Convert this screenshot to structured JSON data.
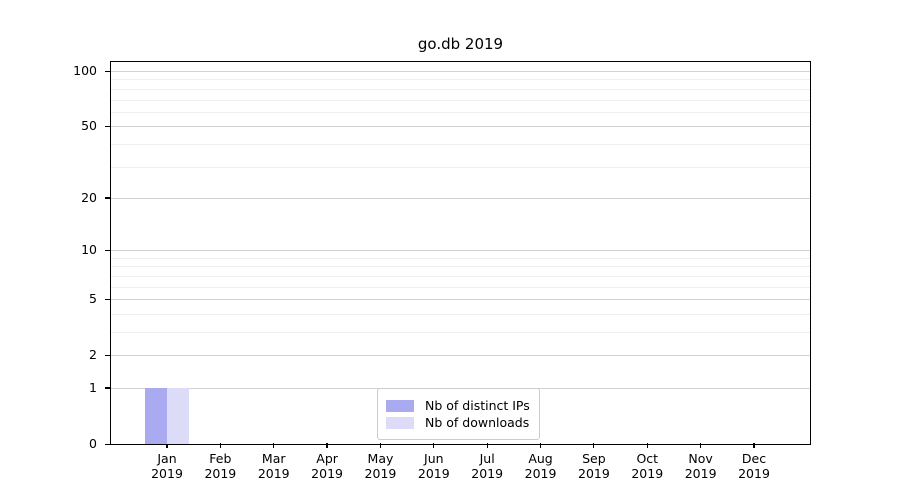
{
  "chart_data": {
    "type": "bar",
    "title": "go.db 2019",
    "x_tick_labels": [
      {
        "month": "Jan",
        "year": "2019"
      },
      {
        "month": "Feb",
        "year": "2019"
      },
      {
        "month": "Mar",
        "year": "2019"
      },
      {
        "month": "Apr",
        "year": "2019"
      },
      {
        "month": "May",
        "year": "2019"
      },
      {
        "month": "Jun",
        "year": "2019"
      },
      {
        "month": "Jul",
        "year": "2019"
      },
      {
        "month": "Aug",
        "year": "2019"
      },
      {
        "month": "Sep",
        "year": "2019"
      },
      {
        "month": "Oct",
        "year": "2019"
      },
      {
        "month": "Nov",
        "year": "2019"
      },
      {
        "month": "Dec",
        "year": "2019"
      }
    ],
    "series": [
      {
        "name": "Nb of distinct IPs",
        "color": "#aaaaf0",
        "values": [
          1,
          0,
          0,
          0,
          0,
          0,
          0,
          0,
          0,
          0,
          0,
          0
        ]
      },
      {
        "name": "Nb of downloads",
        "color": "#dcdcf8",
        "values": [
          1,
          0,
          0,
          0,
          0,
          0,
          0,
          0,
          0,
          0,
          0,
          0
        ]
      }
    ],
    "yscale": "log1p",
    "ylim": [
      0,
      112
    ],
    "y_major_ticks": [
      0,
      1,
      2,
      5,
      10,
      20,
      50,
      100
    ],
    "y_minor_gridlines": [
      3,
      4,
      6,
      7,
      8,
      9,
      30,
      40,
      60,
      70,
      80,
      90
    ],
    "grid": "horizontal-only",
    "legend_position": "lower center",
    "colors": {
      "major_grid": "#d2d2d2",
      "minor_grid": "#efefef",
      "axis": "#000000",
      "legend_border": "#cccccc"
    }
  }
}
